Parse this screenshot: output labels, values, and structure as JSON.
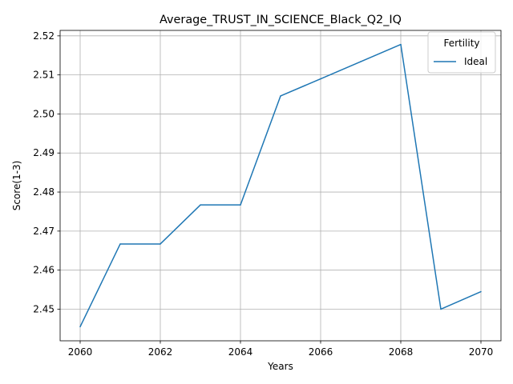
{
  "chart_data": {
    "type": "line",
    "title": "Average_TRUST_IN_SCIENCE_Black_Q2_IQ",
    "xlabel": "Years",
    "ylabel": "Score(1-3)",
    "x": [
      2060,
      2061,
      2062,
      2063,
      2064,
      2065,
      2066,
      2067,
      2068,
      2069,
      2070
    ],
    "series": [
      {
        "name": "Ideal",
        "color": "#1f77b4",
        "values": [
          2.4455,
          2.4667,
          2.4667,
          2.4767,
          2.4767,
          2.5046,
          2.509,
          2.5134,
          2.5178,
          2.45,
          2.4545
        ]
      }
    ],
    "xlim": [
      2059.5,
      2070.5
    ],
    "ylim": [
      2.4419,
      2.5214
    ],
    "xticks": [
      "2060",
      "2062",
      "2064",
      "2066",
      "2068",
      "2070"
    ],
    "yticks": [
      "2.45",
      "2.46",
      "2.47",
      "2.48",
      "2.49",
      "2.50",
      "2.51",
      "2.52"
    ],
    "grid": true,
    "legend": {
      "title": "Fertility",
      "placement": "top-right"
    }
  }
}
